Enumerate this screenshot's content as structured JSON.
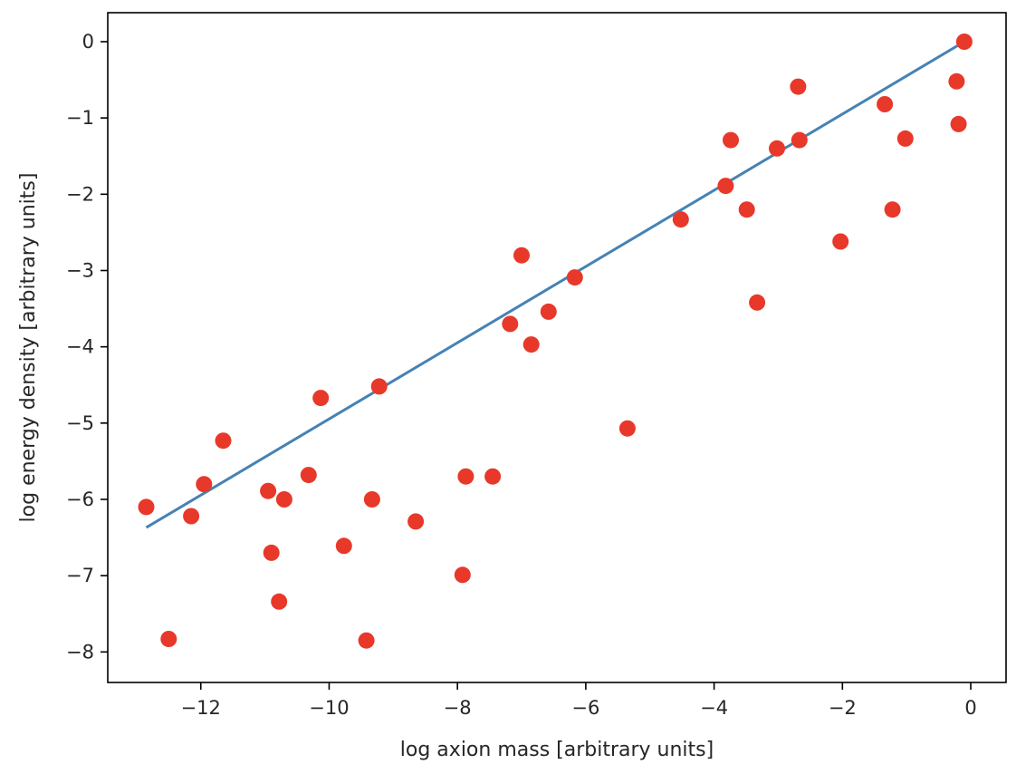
{
  "chart_data": {
    "type": "scatter",
    "title": "",
    "xlabel": "log axion mass [arbitrary units]",
    "ylabel": "log energy density [arbitrary units]",
    "xlim": [
      -13.45,
      0.55
    ],
    "ylim": [
      -8.4,
      0.38
    ],
    "grid": false,
    "x_ticks": [
      -12,
      -10,
      -8,
      -6,
      -4,
      -2,
      0
    ],
    "x_tick_labels": [
      "−12",
      "−10",
      "−8",
      "−6",
      "−4",
      "−2",
      "0"
    ],
    "y_ticks": [
      0,
      -1,
      -2,
      -3,
      -4,
      -5,
      -6,
      -7,
      -8
    ],
    "y_tick_labels": [
      "0",
      "−1",
      "−2",
      "−3",
      "−4",
      "−5",
      "−6",
      "−7",
      "−8"
    ],
    "colors": {
      "points": "#e8382a",
      "fit_line": "#4682b4",
      "axes": "#000000"
    },
    "series": [
      {
        "kind": "scatter",
        "x": [
          -12.85,
          -12.5,
          -12.15,
          -11.95,
          -11.65,
          -10.95,
          -10.9,
          -10.78,
          -10.7,
          -10.32,
          -10.13,
          -9.77,
          -9.42,
          -9.33,
          -9.22,
          -8.65,
          -7.92,
          -7.87,
          -7.45,
          -7.18,
          -7.0,
          -6.85,
          -6.58,
          -6.17,
          -5.35,
          -4.52,
          -3.82,
          -3.74,
          -3.49,
          -3.33,
          -3.02,
          -2.69,
          -2.67,
          -2.03,
          -1.34,
          -1.22,
          -1.02,
          -0.22,
          -0.19,
          -0.1
        ],
        "y": [
          -6.1,
          -7.83,
          -6.22,
          -5.8,
          -5.23,
          -5.89,
          -6.7,
          -7.34,
          -6.0,
          -5.68,
          -4.67,
          -6.61,
          -7.85,
          -6.0,
          -4.52,
          -6.29,
          -6.99,
          -5.7,
          -5.7,
          -3.7,
          -2.8,
          -3.97,
          -3.54,
          -3.09,
          -5.07,
          -2.33,
          -1.89,
          -1.29,
          -2.2,
          -3.42,
          -1.4,
          -0.59,
          -1.29,
          -2.62,
          -0.82,
          -2.2,
          -1.27,
          -0.52,
          -1.08,
          0.0
        ]
      },
      {
        "kind": "line",
        "x": [
          -12.85,
          -0.1
        ],
        "y": [
          -6.37,
          0.0
        ]
      }
    ]
  }
}
